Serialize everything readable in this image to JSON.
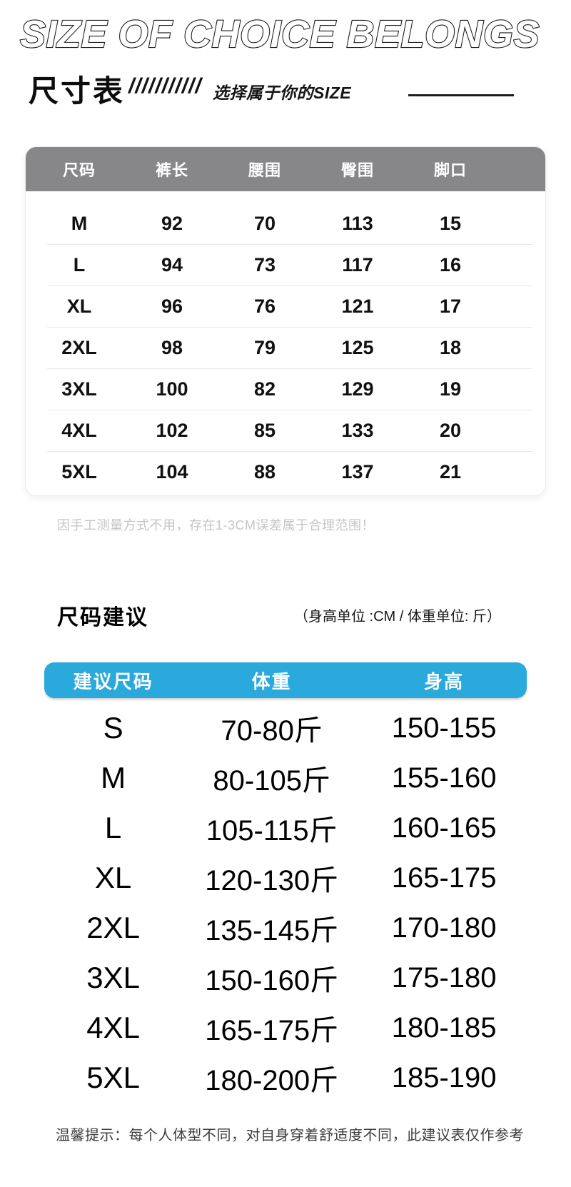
{
  "header": {
    "title_en": "SIZE OF CHOICE BELONGS",
    "title_cn": "尺寸表",
    "slashes": "///////////",
    "subtitle": "选择属于你的SIZE"
  },
  "size_table": {
    "headers": [
      "尺码",
      "裤长",
      "腰围",
      "臀围",
      "脚口"
    ],
    "rows": [
      [
        "M",
        "92",
        "70",
        "113",
        "15"
      ],
      [
        "L",
        "94",
        "73",
        "117",
        "16"
      ],
      [
        "XL",
        "96",
        "76",
        "121",
        "17"
      ],
      [
        "2XL",
        "98",
        "79",
        "125",
        "18"
      ],
      [
        "3XL",
        "100",
        "82",
        "129",
        "19"
      ],
      [
        "4XL",
        "102",
        "85",
        "133",
        "20"
      ],
      [
        "5XL",
        "104",
        "88",
        "137",
        "21"
      ]
    ],
    "note": "因手工测量方式不用，存在1-3CM误差属于合理范围！"
  },
  "suggestion": {
    "heading": "尺码建议",
    "units": "（身高单位 :CM / 体重单位: 斤）",
    "headers": [
      "建议尺码",
      "体重",
      "身高"
    ],
    "rows": [
      [
        "S",
        "70-80斤",
        "150-155"
      ],
      [
        "M",
        "80-105斤",
        "155-160"
      ],
      [
        "L",
        "105-115斤",
        "160-165"
      ],
      [
        "XL",
        "120-130斤",
        "165-175"
      ],
      [
        "2XL",
        "135-145斤",
        "170-180"
      ],
      [
        "3XL",
        "150-160斤",
        "175-180"
      ],
      [
        "4XL",
        "165-175斤",
        "180-185"
      ],
      [
        "5XL",
        "180-200斤",
        "185-190"
      ]
    ],
    "note": "温馨提示：每个人体型不同，对自身穿着舒适度不同，此建议表仅作参考"
  },
  "colors": {
    "table1_header_bg": "#87878a",
    "table2_header_bg": "#29a9dc",
    "header_text": "#ffffff",
    "note_light": "#c5c5c5",
    "note_dark": "#3c3c3c",
    "row_divider": "#e9e9e9"
  }
}
